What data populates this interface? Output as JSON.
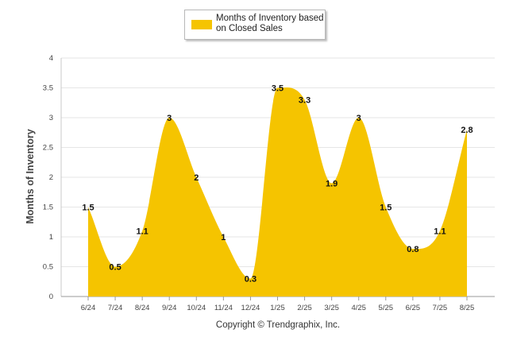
{
  "chart_data": {
    "type": "area",
    "categories": [
      "6/24",
      "7/24",
      "8/24",
      "9/24",
      "10/24",
      "11/24",
      "12/24",
      "1/25",
      "2/25",
      "3/25",
      "4/25",
      "5/25",
      "6/25",
      "7/25",
      "8/25"
    ],
    "series": [
      {
        "name": "Months of Inventory based on Closed Sales",
        "values": [
          1.5,
          0.5,
          1.1,
          3,
          2,
          1,
          0.3,
          3.5,
          3.3,
          1.9,
          3,
          1.5,
          0.8,
          1.1,
          2.8
        ]
      }
    ],
    "data_labels": [
      "1.5",
      "0.5",
      "1.1",
      "3",
      "2",
      "1",
      "0.3",
      "3.5",
      "3.3",
      "1.9",
      "3",
      "1.5",
      "0.8",
      "1.1",
      "2.8"
    ],
    "ylabel": "Months of Inventory",
    "xlabel": "",
    "ylim": [
      0,
      4
    ],
    "yticks": [
      "0",
      "0.5",
      "1",
      "1.5",
      "2",
      "2.5",
      "3",
      "3.5",
      "4"
    ],
    "grid": true,
    "legend_position": "top-center",
    "credit": "Copyright © Trendgraphix, Inc.",
    "colors": {
      "series": "#f5c400",
      "grid": "#e6e6e6",
      "axis": "#c8c8c8"
    }
  }
}
